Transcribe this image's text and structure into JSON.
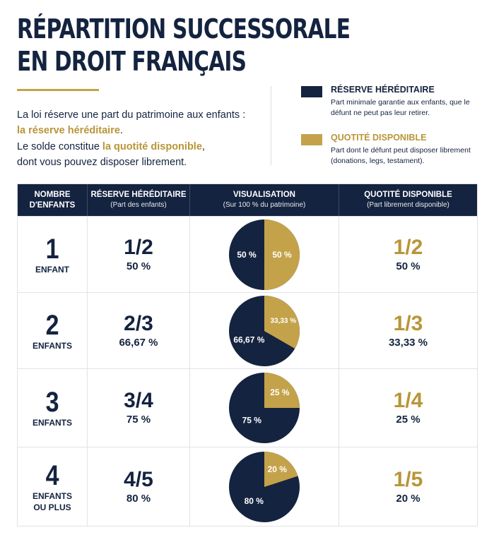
{
  "title_line1": "RÉPARTITION SUCCESSORALE",
  "title_line2": "EN DROIT FRANÇAIS",
  "intro": {
    "p1_text": "La loi réserve une part du patrimoine aux enfants :",
    "p1_highlight": "la réserve héréditaire",
    "p1_end": ".",
    "p2_start": "Le solde constitue ",
    "p2_highlight": "la quotité disponible",
    "p2_end": ",",
    "p2_line2": "dont vous pouvez disposer librement."
  },
  "legend": [
    {
      "title": "RÉSERVE HÉRÉDITAIRE",
      "desc": "Part minimale garantie aux enfants, que le défunt ne peut pas leur retirer.",
      "color": "#14233f"
    },
    {
      "title": "QUOTITÉ DISPONIBLE",
      "desc": "Part dont le défunt peut disposer librement (donations, legs, testament).",
      "color": "#c4a24a"
    }
  ],
  "headers": [
    {
      "line1": "NOMBRE",
      "line2": "D'ENFANTS"
    },
    {
      "line1": "RÉSERVE HÉRÉDITAIRE",
      "line2": "(Part des enfants)"
    },
    {
      "line1": "VISUALISATION",
      "line2": "(Sur 100 % du patrimoine)"
    },
    {
      "line1": "QUOTITÉ DISPONIBLE",
      "line2": "(Part librement disponible)"
    }
  ],
  "colors": {
    "navy": "#14233f",
    "gold": "#c4a24a"
  },
  "chart_data": {
    "type": "pie",
    "series": [
      {
        "children": "1",
        "children_label": "ENFANT",
        "reserve_fraction": "1/2",
        "reserve_pct": "50 %",
        "quotite_fraction": "1/2",
        "quotite_pct": "50 %",
        "values": [
          50,
          50
        ],
        "labels": [
          "50 %",
          "50 %"
        ]
      },
      {
        "children": "2",
        "children_label": "ENFANTS",
        "reserve_fraction": "2/3",
        "reserve_pct": "66,67 %",
        "quotite_fraction": "1/3",
        "quotite_pct": "33,33 %",
        "values": [
          66.67,
          33.33
        ],
        "labels": [
          "66,67 %",
          "33,33 %"
        ]
      },
      {
        "children": "3",
        "children_label": "ENFANTS",
        "reserve_fraction": "3/4",
        "reserve_pct": "75 %",
        "quotite_fraction": "1/4",
        "quotite_pct": "25 %",
        "values": [
          75,
          25
        ],
        "labels": [
          "75 %",
          "25 %"
        ]
      },
      {
        "children": "4",
        "children_label": "ENFANTS|OU PLUS",
        "reserve_fraction": "4/5",
        "reserve_pct": "80 %",
        "quotite_fraction": "1/5",
        "quotite_pct": "20 %",
        "values": [
          80,
          20
        ],
        "labels": [
          "80 %",
          "20 %"
        ]
      }
    ]
  }
}
